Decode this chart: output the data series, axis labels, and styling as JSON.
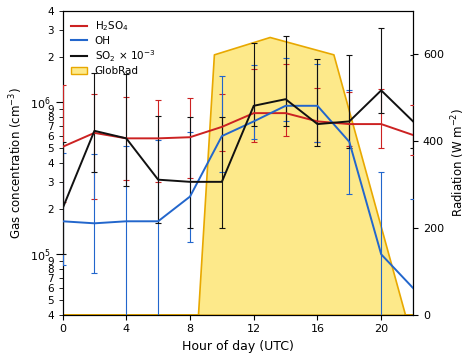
{
  "hours": [
    0,
    2,
    4,
    6,
    8,
    10,
    12,
    14,
    16,
    18,
    20,
    22
  ],
  "h2so4_y": [
    510000.0,
    630000.0,
    580000.0,
    580000.0,
    590000.0,
    690000.0,
    850000.0,
    850000.0,
    750000.0,
    720000.0,
    720000.0,
    610000.0
  ],
  "h2so4_lo": [
    290000.0,
    400000.0,
    270000.0,
    280000.0,
    270000.0,
    210000.0,
    300000.0,
    250000.0,
    200000.0,
    200000.0,
    220000.0,
    160000.0
  ],
  "h2so4_hi": [
    800000.0,
    500000.0,
    500000.0,
    450000.0,
    480000.0,
    450000.0,
    800000.0,
    950000.0,
    500000.0,
    450000.0,
    500000.0,
    350000.0
  ],
  "oh_y": [
    165000.0,
    160000.0,
    165000.0,
    165000.0,
    240000.0,
    600000.0,
    750000.0,
    950000.0,
    950000.0,
    550000.0,
    100000.0,
    60000.0
  ],
  "oh_lo": [
    80000.0,
    85000.0,
    130000.0,
    150000.0,
    120000.0,
    250000.0,
    180000.0,
    200000.0,
    400000.0,
    300000.0,
    65000.0,
    40000.0
  ],
  "oh_hi": [
    300000.0,
    300000.0,
    350000.0,
    400000.0,
    400000.0,
    900000.0,
    1000000.0,
    1000000.0,
    850000.0,
    650000.0,
    250000.0,
    170000.0
  ],
  "so2_y": [
    200000.0,
    650000.0,
    580000.0,
    310000.0,
    300000.0,
    300000.0,
    950000.0,
    1050000.0,
    720000.0,
    750000.0,
    1200000.0,
    750000.0
  ],
  "so2_lo": [
    100000.0,
    300000.0,
    300000.0,
    150000.0,
    150000.0,
    150000.0,
    250000.0,
    350000.0,
    200000.0,
    250000.0,
    350000.0,
    250000.0
  ],
  "so2_hi": [
    350000.0,
    900000.0,
    950000.0,
    500000.0,
    500000.0,
    500000.0,
    1500000.0,
    1700000.0,
    1200000.0,
    1300000.0,
    1900000.0,
    1300000.0
  ],
  "globrad_hours": [
    0,
    8.5,
    9.5,
    13.0,
    17.0,
    21.5,
    22
  ],
  "globrad_values": [
    0,
    0,
    600,
    640,
    600,
    0,
    0
  ],
  "h2so4_color": "#cc2222",
  "oh_color": "#2266cc",
  "so2_color": "#111111",
  "globrad_face": "#fde98a",
  "globrad_edge": "#e8a800",
  "xlim": [
    0,
    22
  ],
  "ylim_log": [
    40000.0,
    4000000.0
  ],
  "ylim_rad": [
    0,
    700
  ],
  "rad_ticks": [
    0,
    200,
    400,
    600
  ],
  "xticks": [
    0,
    4,
    8,
    12,
    16,
    20
  ],
  "xlabel": "Hour of day (UTC)",
  "ylabel_left": "Gas concentration (cm$^{-3}$)",
  "ylabel_right": "Radiation (W m$^{-2}$)",
  "legend_labels": [
    "H$_2$SO$_4$",
    "OH",
    "SO$_2$ × 10$^{-3}$",
    "GlobRad"
  ]
}
